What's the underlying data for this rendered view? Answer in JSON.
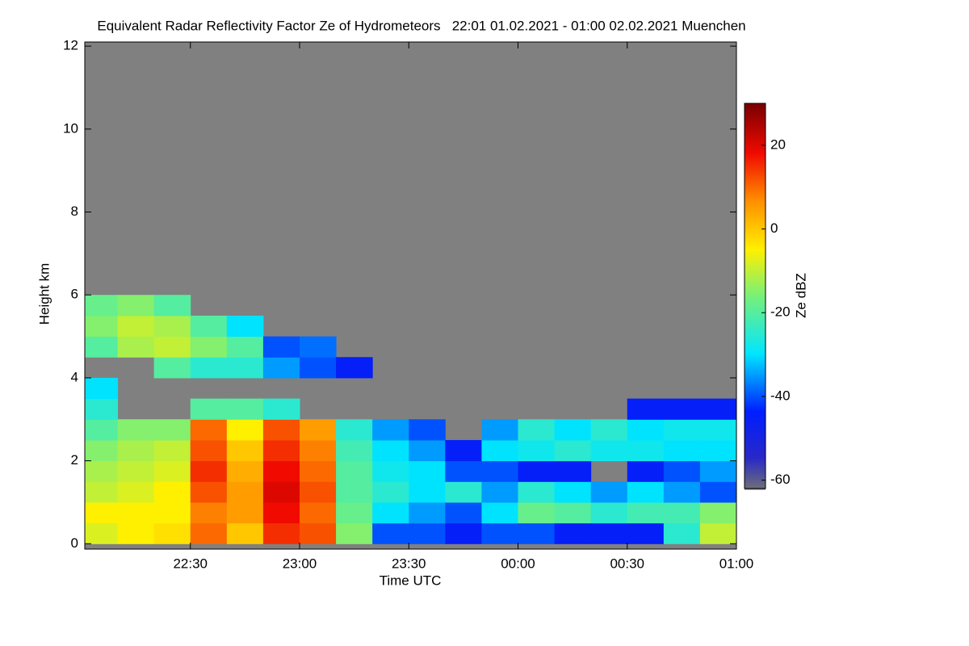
{
  "chart_data": {
    "type": "heatmap",
    "title": "Equivalent Radar Reflectivity Factor Ze of Hydrometeors   22:01 01.02.2021 - 01:00 02.02.2021 Muenchen",
    "x_label": "Time UTC",
    "y_label": "Height km",
    "colorbar_label": "Ze dBZ",
    "xlim": [
      1,
      180
    ],
    "xticks": [
      {
        "value": 30,
        "label": "22:30"
      },
      {
        "value": 60,
        "label": "23:00"
      },
      {
        "value": 90,
        "label": "23:30"
      },
      {
        "value": 120,
        "label": "00:00"
      },
      {
        "value": 150,
        "label": "00:30"
      },
      {
        "value": 180,
        "label": "01:00"
      }
    ],
    "ylim": [
      -0.13,
      12.1
    ],
    "yticks": [
      0,
      2,
      4,
      6,
      8,
      10,
      12
    ],
    "clim": [
      -62,
      30
    ],
    "cticks": [
      -60,
      -40,
      -20,
      0,
      20
    ],
    "x": [
      5,
      15,
      25,
      35,
      45,
      55,
      65,
      75,
      85,
      95,
      105,
      115,
      125,
      135,
      145,
      155,
      165,
      175
    ],
    "y": [
      0.25,
      0.75,
      1.25,
      1.75,
      2.25,
      2.75,
      3.25,
      3.75,
      4.25,
      4.75,
      5.25,
      5.75,
      6.25
    ],
    "values": [
      [
        -8,
        -5,
        -10,
        -12,
        -15,
        -20,
        -25,
        -30,
        null,
        -20,
        -15,
        -18,
        null
      ],
      [
        -5,
        -5,
        -8,
        -10,
        -12,
        -15,
        null,
        null,
        null,
        -12,
        -10,
        -15,
        null
      ],
      [
        -3,
        -5,
        -5,
        -8,
        -10,
        -15,
        null,
        null,
        -20,
        -10,
        -12,
        -20,
        null
      ],
      [
        10,
        8,
        12,
        15,
        12,
        10,
        -20,
        null,
        -25,
        -15,
        -20,
        null,
        null
      ],
      [
        0,
        5,
        5,
        3,
        0,
        -5,
        -20,
        null,
        -25,
        -20,
        -30,
        null,
        null
      ],
      [
        15,
        18,
        20,
        18,
        15,
        12,
        -25,
        null,
        -35,
        -40,
        null,
        null,
        null
      ],
      [
        12,
        10,
        12,
        10,
        8,
        5,
        null,
        null,
        -40,
        -38,
        null,
        null,
        null
      ],
      [
        -15,
        -18,
        -20,
        -20,
        -22,
        -25,
        null,
        null,
        -45,
        null,
        null,
        null,
        null
      ],
      [
        -40,
        -30,
        -25,
        -28,
        -30,
        -35,
        null,
        null,
        null,
        null,
        null,
        null,
        null
      ],
      [
        -40,
        -35,
        -30,
        -30,
        -35,
        -40,
        null,
        null,
        null,
        null,
        null,
        null,
        null
      ],
      [
        -45,
        -40,
        -25,
        -40,
        -45,
        null,
        null,
        null,
        null,
        null,
        null,
        null,
        null
      ],
      [
        -40,
        -30,
        -35,
        -40,
        -30,
        -35,
        null,
        null,
        null,
        null,
        null,
        null,
        null
      ],
      [
        -40,
        -18,
        -25,
        -45,
        -28,
        -25,
        null,
        null,
        null,
        null,
        null,
        null,
        null
      ],
      [
        -45,
        -20,
        -30,
        -45,
        -25,
        -30,
        null,
        null,
        null,
        null,
        null,
        null,
        null
      ],
      [
        -45,
        -25,
        -35,
        null,
        -28,
        -25,
        null,
        null,
        null,
        null,
        null,
        null,
        null
      ],
      [
        -45,
        -22,
        -30,
        -45,
        -28,
        -30,
        -45,
        null,
        null,
        null,
        null,
        null,
        null
      ],
      [
        -25,
        -22,
        -35,
        -40,
        -30,
        -28,
        -45,
        null,
        null,
        null,
        null,
        null,
        null
      ],
      [
        -10,
        -15,
        -40,
        -35,
        -30,
        -28,
        -45,
        null,
        null,
        null,
        null,
        null,
        null
      ]
    ]
  }
}
